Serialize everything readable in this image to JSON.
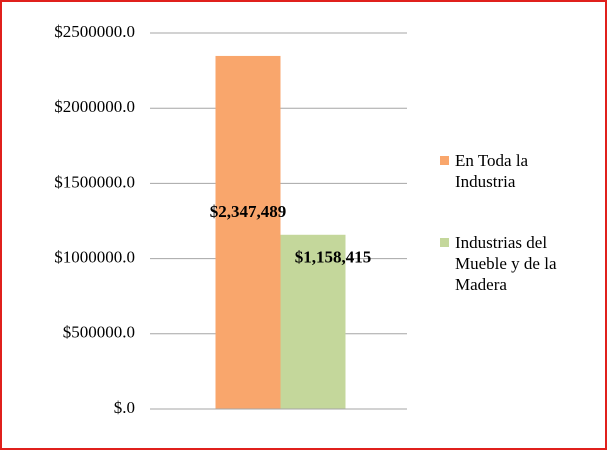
{
  "chart_data": {
    "type": "bar",
    "categories": [
      null
    ],
    "series": [
      {
        "name": "En Toda la Industria",
        "color": "#f9a66c",
        "values": [
          2347489
        ],
        "value_labels": [
          "$2,347,489"
        ]
      },
      {
        "name": "Industrias del Mueble y de la Madera",
        "color": "#c4d79b",
        "values": [
          1158415
        ],
        "value_labels": [
          "$1,158,415"
        ]
      }
    ],
    "ylim": [
      0,
      2500000
    ],
    "yticks": [
      {
        "value": 0,
        "label": "$.0"
      },
      {
        "value": 500000,
        "label": "$500000.0"
      },
      {
        "value": 1000000,
        "label": "$1000000.0"
      },
      {
        "value": 1500000,
        "label": "$1500000.0"
      },
      {
        "value": 2000000,
        "label": "$2000000.0"
      },
      {
        "value": 2500000,
        "label": "$2500000.0"
      }
    ],
    "grid": true,
    "legend": "right"
  }
}
